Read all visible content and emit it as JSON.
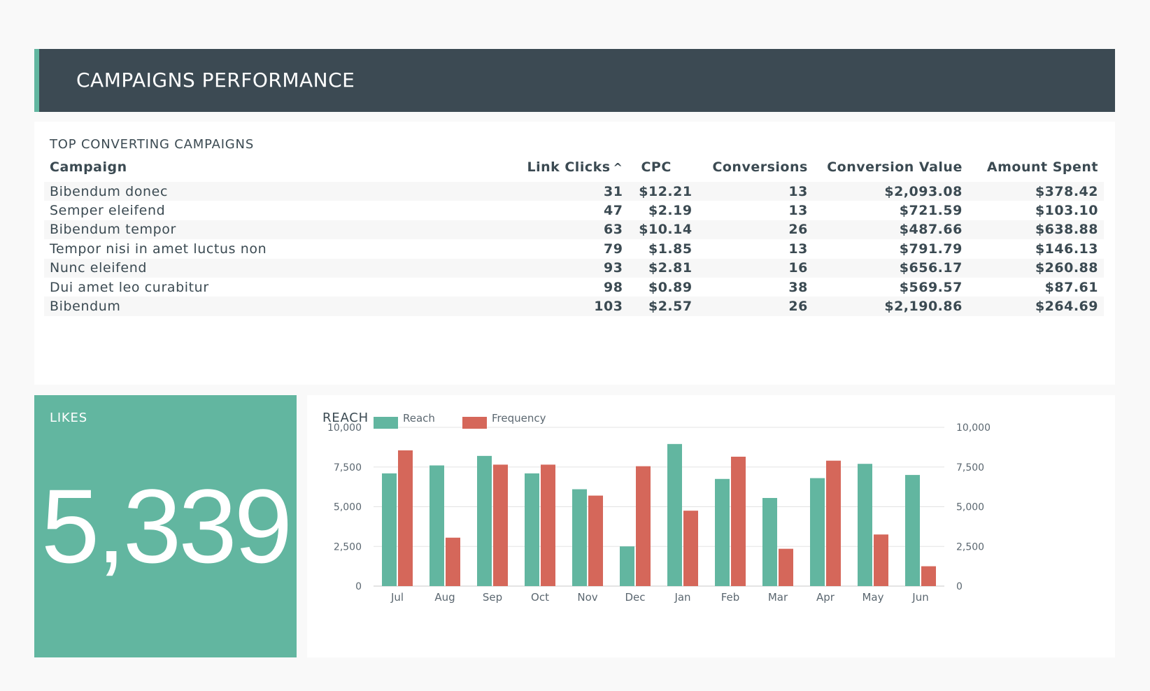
{
  "header": {
    "title": "CAMPAIGNS PERFORMANCE"
  },
  "table": {
    "title": "TOP CONVERTING CAMPAIGNS",
    "columns": [
      "Campaign",
      "Link Clicks",
      "CPC",
      "Conversions",
      "Conversion Value",
      "Amount Spent"
    ],
    "sort_icon": "chevron-up-icon",
    "rows": [
      [
        "Bibendum donec",
        "31",
        "$12.21",
        "13",
        "$2,093.08",
        "$378.42"
      ],
      [
        "Semper eleifend",
        "47",
        "$2.19",
        "13",
        "$721.59",
        "$103.10"
      ],
      [
        "Bibendum tempor",
        "63",
        "$10.14",
        "26",
        "$487.66",
        "$638.88"
      ],
      [
        "Tempor nisi in amet luctus non",
        "79",
        "$1.85",
        "13",
        "$791.79",
        "$146.13"
      ],
      [
        "Nunc eleifend",
        "93",
        "$2.81",
        "16",
        "$656.17",
        "$260.88"
      ],
      [
        "Dui amet leo curabitur",
        "98",
        "$0.89",
        "38",
        "$569.57",
        "$87.61"
      ],
      [
        "Bibendum",
        "103",
        "$2.57",
        "26",
        "$2,190.86",
        "$264.69"
      ]
    ]
  },
  "likes": {
    "title": "LIKES",
    "value": "5,339"
  },
  "colors": {
    "reach": "#62b6a0",
    "frequency": "#d5675a",
    "header": "#3c4a53"
  },
  "chart_data": {
    "type": "bar",
    "title": "REACH",
    "categories": [
      "Jul",
      "Aug",
      "Sep",
      "Oct",
      "Nov",
      "Dec",
      "Jan",
      "Feb",
      "Mar",
      "Apr",
      "May",
      "Jun"
    ],
    "series": [
      {
        "name": "Reach",
        "axis": "left",
        "color": "#62b6a0",
        "values": [
          7100,
          7600,
          8200,
          7100,
          6100,
          2500,
          8950,
          6750,
          5550,
          6800,
          7700,
          7000
        ]
      },
      {
        "name": "Frequency",
        "axis": "right",
        "color": "#d5675a",
        "values": [
          8550,
          3050,
          7650,
          7650,
          5700,
          7550,
          4750,
          8150,
          2350,
          7900,
          3250,
          1250
        ]
      }
    ],
    "ylim": [
      0,
      10000
    ],
    "y2lim": [
      0,
      10000
    ],
    "yticks": [
      "0",
      "2,500",
      "5,000",
      "7,500",
      "10,000"
    ],
    "legend": "top-left",
    "grid": true
  }
}
